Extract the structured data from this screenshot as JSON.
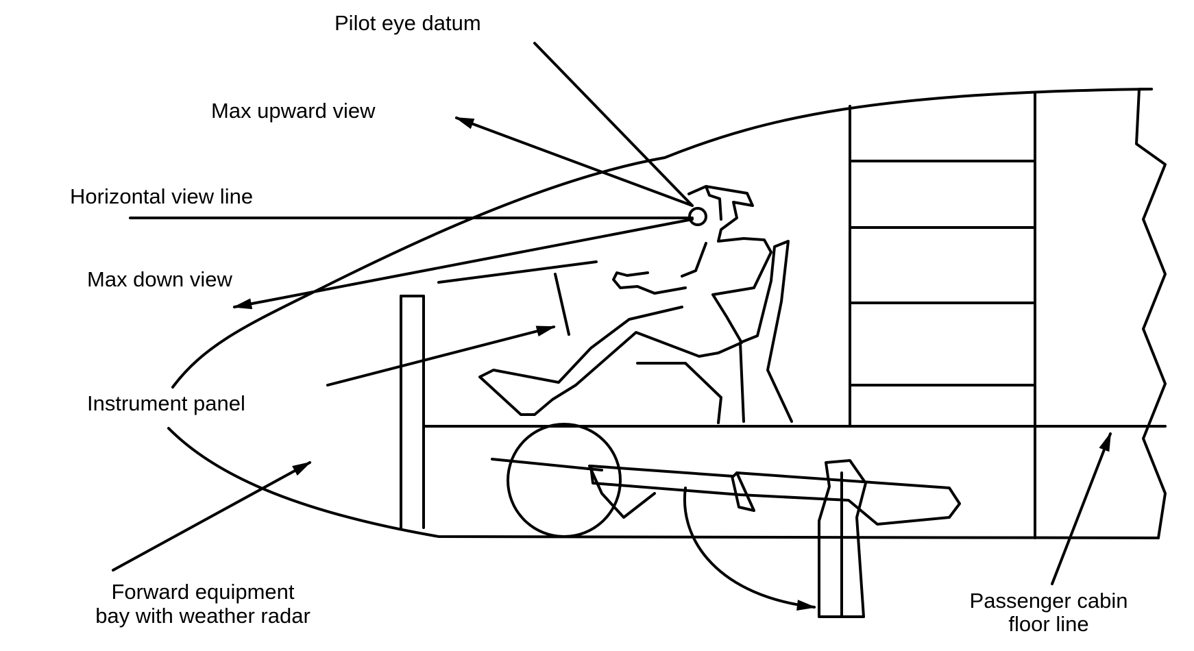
{
  "labels": {
    "pilot_eye_datum": "Pilot eye datum",
    "max_upward_view": "Max upward view",
    "horizontal_view_line": "Horizontal view line",
    "max_down_view": "Max down view",
    "instrument_panel": "Instrument panel",
    "forward_equipment_bay_line1": "Forward equipment",
    "forward_equipment_bay_line2": "bay with weather radar",
    "passenger_cabin_line1": "Passenger cabin",
    "passenger_cabin_line2": "floor line"
  }
}
